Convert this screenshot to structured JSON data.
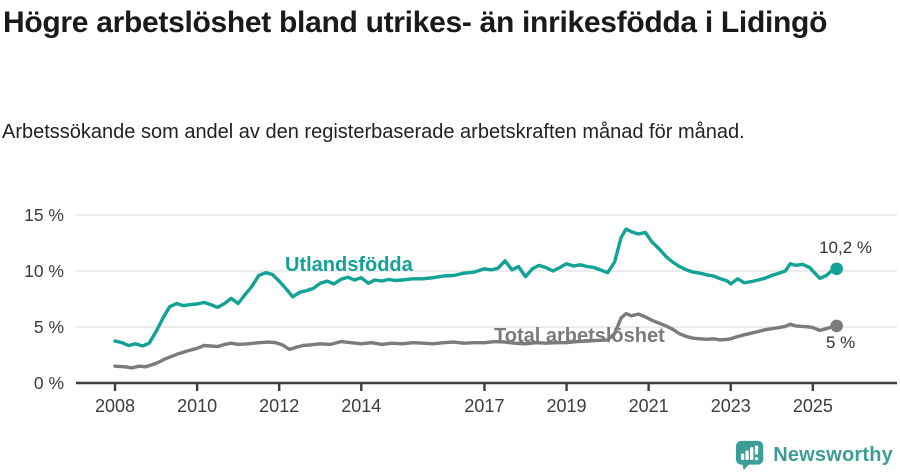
{
  "header": {
    "title": "Högre arbetslöshet bland utrikes- än inrikesfödda i Lidingö",
    "subtitle": "Arbetssökande som andel av den registerbaserade arbetskraften månad för månad."
  },
  "chart_data": {
    "type": "line",
    "title": "Högre arbetslöshet bland utrikes- än inrikesfödda i Lidingö",
    "subtitle": "Arbetssökande som andel av den registerbaserade arbetskraften månad för månad.",
    "xlabel": "",
    "ylabel": "",
    "x_unit": "decimal year (monthly data)",
    "xlim": [
      2007.9,
      2025.95
    ],
    "ylim": [
      0,
      15
    ],
    "grid": "horizontal",
    "legend_position": "inline-labels",
    "axis_color": "#3f3f3f",
    "gridline_color": "#d9d9d9",
    "tick_label_color": "#3d3d3d",
    "y_ticks": [
      {
        "label": "15 %",
        "value": 15
      },
      {
        "label": "10 %",
        "value": 10
      },
      {
        "label": "5 %",
        "value": 5
      },
      {
        "label": "0 %",
        "value": 0
      }
    ],
    "x_ticks": [
      {
        "label": "2008",
        "year": 2008
      },
      {
        "label": "2010",
        "year": 2010
      },
      {
        "label": "2012",
        "year": 2012
      },
      {
        "label": "2014",
        "year": 2014
      },
      {
        "label": "2017",
        "year": 2017
      },
      {
        "label": "2019",
        "year": 2019
      },
      {
        "label": "2021",
        "year": 2021
      },
      {
        "label": "2023",
        "year": 2023
      },
      {
        "label": "2025",
        "year": 2025
      }
    ],
    "series": [
      {
        "name": "Utlandsfödda",
        "color": "#12a296",
        "end_label": "10,2 %",
        "end_value": 10.2,
        "points": [
          [
            2008.0,
            3.75
          ],
          [
            2008.17,
            3.6
          ],
          [
            2008.33,
            3.35
          ],
          [
            2008.5,
            3.5
          ],
          [
            2008.67,
            3.3
          ],
          [
            2008.83,
            3.55
          ],
          [
            2009.0,
            4.6
          ],
          [
            2009.17,
            5.8
          ],
          [
            2009.33,
            6.8
          ],
          [
            2009.5,
            7.1
          ],
          [
            2009.67,
            6.9
          ],
          [
            2009.83,
            7.0
          ],
          [
            2010.0,
            7.05
          ],
          [
            2010.17,
            7.2
          ],
          [
            2010.33,
            7.0
          ],
          [
            2010.5,
            6.75
          ],
          [
            2010.67,
            7.1
          ],
          [
            2010.83,
            7.55
          ],
          [
            2011.0,
            7.1
          ],
          [
            2011.17,
            7.9
          ],
          [
            2011.33,
            8.6
          ],
          [
            2011.5,
            9.6
          ],
          [
            2011.67,
            9.85
          ],
          [
            2011.83,
            9.7
          ],
          [
            2012.0,
            9.1
          ],
          [
            2012.17,
            8.4
          ],
          [
            2012.33,
            7.7
          ],
          [
            2012.5,
            8.1
          ],
          [
            2012.67,
            8.25
          ],
          [
            2012.83,
            8.45
          ],
          [
            2013.0,
            8.9
          ],
          [
            2013.17,
            9.1
          ],
          [
            2013.33,
            8.85
          ],
          [
            2013.5,
            9.25
          ],
          [
            2013.67,
            9.45
          ],
          [
            2013.83,
            9.2
          ],
          [
            2014.0,
            9.4
          ],
          [
            2014.17,
            8.9
          ],
          [
            2014.33,
            9.2
          ],
          [
            2014.5,
            9.1
          ],
          [
            2014.67,
            9.25
          ],
          [
            2014.83,
            9.15
          ],
          [
            2015.0,
            9.2
          ],
          [
            2015.25,
            9.3
          ],
          [
            2015.5,
            9.3
          ],
          [
            2015.75,
            9.4
          ],
          [
            2016.0,
            9.55
          ],
          [
            2016.25,
            9.6
          ],
          [
            2016.5,
            9.8
          ],
          [
            2016.75,
            9.9
          ],
          [
            2017.0,
            10.2
          ],
          [
            2017.17,
            10.1
          ],
          [
            2017.33,
            10.25
          ],
          [
            2017.5,
            10.9
          ],
          [
            2017.67,
            10.1
          ],
          [
            2017.83,
            10.4
          ],
          [
            2018.0,
            9.5
          ],
          [
            2018.17,
            10.2
          ],
          [
            2018.33,
            10.5
          ],
          [
            2018.5,
            10.3
          ],
          [
            2018.67,
            10.0
          ],
          [
            2018.83,
            10.3
          ],
          [
            2019.0,
            10.65
          ],
          [
            2019.17,
            10.45
          ],
          [
            2019.33,
            10.55
          ],
          [
            2019.5,
            10.4
          ],
          [
            2019.67,
            10.3
          ],
          [
            2019.83,
            10.1
          ],
          [
            2020.0,
            9.85
          ],
          [
            2020.17,
            10.8
          ],
          [
            2020.33,
            13.0
          ],
          [
            2020.45,
            13.75
          ],
          [
            2020.58,
            13.5
          ],
          [
            2020.75,
            13.3
          ],
          [
            2020.92,
            13.45
          ],
          [
            2021.08,
            12.6
          ],
          [
            2021.25,
            12.0
          ],
          [
            2021.42,
            11.3
          ],
          [
            2021.58,
            10.8
          ],
          [
            2021.75,
            10.4
          ],
          [
            2021.92,
            10.1
          ],
          [
            2022.08,
            9.9
          ],
          [
            2022.25,
            9.8
          ],
          [
            2022.42,
            9.65
          ],
          [
            2022.58,
            9.55
          ],
          [
            2022.75,
            9.3
          ],
          [
            2022.92,
            9.1
          ],
          [
            2023.0,
            8.85
          ],
          [
            2023.17,
            9.3
          ],
          [
            2023.33,
            8.95
          ],
          [
            2023.5,
            9.05
          ],
          [
            2023.67,
            9.2
          ],
          [
            2023.83,
            9.35
          ],
          [
            2024.0,
            9.6
          ],
          [
            2024.17,
            9.8
          ],
          [
            2024.33,
            10.0
          ],
          [
            2024.45,
            10.65
          ],
          [
            2024.58,
            10.5
          ],
          [
            2024.75,
            10.6
          ],
          [
            2024.92,
            10.3
          ],
          [
            2025.0,
            10.0
          ],
          [
            2025.17,
            9.35
          ],
          [
            2025.33,
            9.6
          ],
          [
            2025.45,
            10.0
          ],
          [
            2025.58,
            10.2
          ]
        ]
      },
      {
        "name": "Total arbetslöshet",
        "color": "#7b7b7b",
        "end_label": "5 %",
        "end_value": 5.1,
        "points": [
          [
            2008.0,
            1.5
          ],
          [
            2008.25,
            1.45
          ],
          [
            2008.42,
            1.35
          ],
          [
            2008.58,
            1.5
          ],
          [
            2008.75,
            1.45
          ],
          [
            2009.0,
            1.75
          ],
          [
            2009.25,
            2.2
          ],
          [
            2009.5,
            2.55
          ],
          [
            2009.75,
            2.85
          ],
          [
            2010.0,
            3.1
          ],
          [
            2010.17,
            3.35
          ],
          [
            2010.33,
            3.3
          ],
          [
            2010.5,
            3.25
          ],
          [
            2010.67,
            3.45
          ],
          [
            2010.83,
            3.55
          ],
          [
            2011.0,
            3.45
          ],
          [
            2011.25,
            3.5
          ],
          [
            2011.5,
            3.6
          ],
          [
            2011.75,
            3.65
          ],
          [
            2011.92,
            3.6
          ],
          [
            2012.08,
            3.4
          ],
          [
            2012.25,
            3.0
          ],
          [
            2012.42,
            3.2
          ],
          [
            2012.58,
            3.35
          ],
          [
            2012.75,
            3.4
          ],
          [
            2013.0,
            3.5
          ],
          [
            2013.25,
            3.45
          ],
          [
            2013.5,
            3.7
          ],
          [
            2013.75,
            3.6
          ],
          [
            2014.0,
            3.5
          ],
          [
            2014.25,
            3.6
          ],
          [
            2014.5,
            3.45
          ],
          [
            2014.75,
            3.55
          ],
          [
            2015.0,
            3.5
          ],
          [
            2015.25,
            3.6
          ],
          [
            2015.5,
            3.55
          ],
          [
            2015.75,
            3.5
          ],
          [
            2016.0,
            3.6
          ],
          [
            2016.25,
            3.65
          ],
          [
            2016.5,
            3.55
          ],
          [
            2016.75,
            3.6
          ],
          [
            2017.0,
            3.6
          ],
          [
            2017.25,
            3.7
          ],
          [
            2017.5,
            3.65
          ],
          [
            2017.75,
            3.55
          ],
          [
            2018.0,
            3.5
          ],
          [
            2018.25,
            3.6
          ],
          [
            2018.5,
            3.55
          ],
          [
            2018.75,
            3.6
          ],
          [
            2019.0,
            3.6
          ],
          [
            2019.25,
            3.7
          ],
          [
            2019.5,
            3.75
          ],
          [
            2019.75,
            3.8
          ],
          [
            2020.0,
            3.85
          ],
          [
            2020.17,
            4.4
          ],
          [
            2020.33,
            5.8
          ],
          [
            2020.45,
            6.2
          ],
          [
            2020.58,
            6.0
          ],
          [
            2020.75,
            6.15
          ],
          [
            2020.92,
            5.9
          ],
          [
            2021.08,
            5.6
          ],
          [
            2021.25,
            5.35
          ],
          [
            2021.42,
            5.1
          ],
          [
            2021.58,
            4.8
          ],
          [
            2021.75,
            4.4
          ],
          [
            2021.92,
            4.15
          ],
          [
            2022.08,
            4.0
          ],
          [
            2022.25,
            3.95
          ],
          [
            2022.42,
            3.9
          ],
          [
            2022.58,
            3.95
          ],
          [
            2022.75,
            3.85
          ],
          [
            2022.92,
            3.9
          ],
          [
            2023.0,
            3.95
          ],
          [
            2023.17,
            4.15
          ],
          [
            2023.33,
            4.3
          ],
          [
            2023.5,
            4.45
          ],
          [
            2023.67,
            4.6
          ],
          [
            2023.83,
            4.75
          ],
          [
            2024.0,
            4.85
          ],
          [
            2024.17,
            4.95
          ],
          [
            2024.33,
            5.05
          ],
          [
            2024.45,
            5.25
          ],
          [
            2024.58,
            5.1
          ],
          [
            2024.75,
            5.05
          ],
          [
            2024.92,
            5.0
          ],
          [
            2025.0,
            4.95
          ],
          [
            2025.17,
            4.7
          ],
          [
            2025.33,
            4.85
          ],
          [
            2025.45,
            5.0
          ],
          [
            2025.58,
            5.1
          ]
        ]
      }
    ]
  },
  "footer": {
    "brand": "Newsworthy",
    "brand_color": "#3d9d96"
  }
}
